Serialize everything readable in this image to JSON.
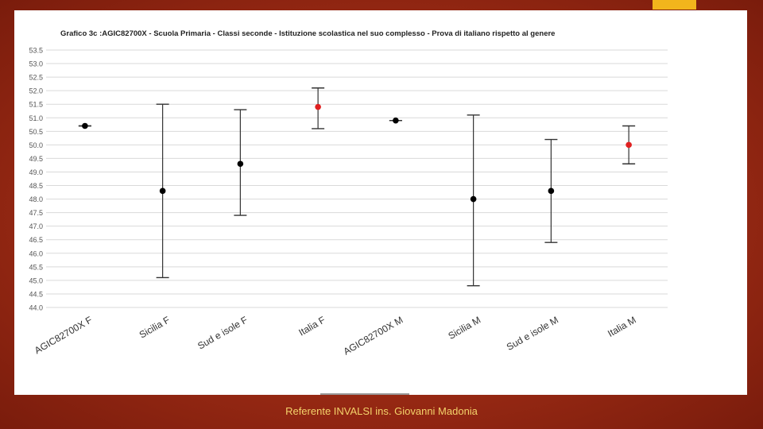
{
  "footer": {
    "text": "Referente INVALSI ins. Giovanni Madonia"
  },
  "colors": {
    "background": "#a3301a",
    "accent": "#f2b51c",
    "point_black": "#000000",
    "point_red": "#e02020"
  },
  "chart_data": {
    "type": "scatter",
    "title": "Grafico 3c :AGIC82700X - Scuola Primaria - Classi seconde - Istituzione scolastica nel suo complesso - Prova di italiano rispetto al genere",
    "xlabel": "",
    "ylabel": "",
    "ylim": [
      44.0,
      53.5
    ],
    "y_ticks": [
      "53.5",
      "53.0",
      "52.5",
      "52.0",
      "51.5",
      "51.0",
      "50.5",
      "50.0",
      "49.5",
      "49.0",
      "48.5",
      "48.0",
      "47.5",
      "47.0",
      "46.5",
      "46.0",
      "45.5",
      "45.0",
      "44.5",
      "44.0"
    ],
    "grid": true,
    "legend": "none",
    "categories": [
      "AGIC82700X F",
      "Sicilia F",
      "Sud e isole F",
      "Italia F",
      "AGIC82700X M",
      "Sicilia M",
      "Sud e isole M",
      "Italia M"
    ],
    "points": [
      {
        "category": "AGIC82700X F",
        "y": 50.7,
        "lower": 50.7,
        "upper": 50.7,
        "color": "black"
      },
      {
        "category": "Sicilia F",
        "y": 48.3,
        "lower": 45.1,
        "upper": 51.5,
        "color": "black"
      },
      {
        "category": "Sud e isole F",
        "y": 49.3,
        "lower": 47.4,
        "upper": 51.3,
        "color": "black"
      },
      {
        "category": "Italia F",
        "y": 51.4,
        "lower": 50.6,
        "upper": 52.1,
        "color": "red"
      },
      {
        "category": "AGIC82700X M",
        "y": 50.9,
        "lower": 50.9,
        "upper": 50.9,
        "color": "black"
      },
      {
        "category": "Sicilia M",
        "y": 48.0,
        "lower": 44.8,
        "upper": 51.1,
        "color": "black"
      },
      {
        "category": "Sud e isole M",
        "y": 48.3,
        "lower": 46.4,
        "upper": 50.2,
        "color": "black"
      },
      {
        "category": "Italia M",
        "y": 50.0,
        "lower": 49.3,
        "upper": 50.7,
        "color": "red"
      }
    ]
  }
}
